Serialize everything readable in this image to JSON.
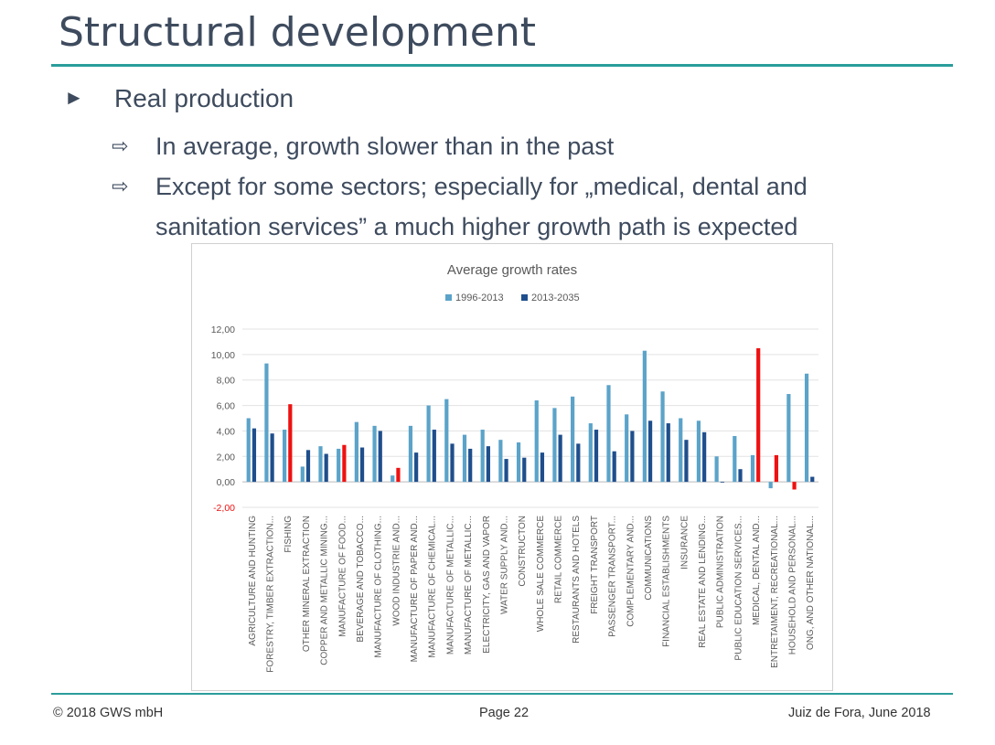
{
  "slide": {
    "title": "Structural development",
    "bullet1": "Real production",
    "sub1": "In average, growth slower than in the past",
    "sub2": "Except for some sectors; especially for „medical, dental and sanitation services” a much higher growth path is expected"
  },
  "footer": {
    "left": "© 2018 GWS mbH",
    "center": "Page 22",
    "right": "Juiz de Fora, June 2018"
  },
  "colors": {
    "series1": "#5ba3c9",
    "series2": "#1f4e8c",
    "highlight": "#ee1111",
    "negative_tick": "#ee1111"
  },
  "chart_data": {
    "type": "bar",
    "title": "Average growth rates",
    "legend_position": "top",
    "ylim": [
      -2,
      12
    ],
    "yticks": [
      "12,00",
      "10,00",
      "8,00",
      "6,00",
      "4,00",
      "2,00",
      "0,00",
      "-2,00"
    ],
    "ytick_values": [
      12,
      10,
      8,
      6,
      4,
      2,
      0,
      -2
    ],
    "grid": true,
    "categories": [
      "AGRICULTURE AND HUNTING",
      "FORESTRY, TIMBER EXTRACTION...",
      "FISHING",
      "OTHER MINERAL EXTRACTION",
      "COPPER AND METALLIC MINING...",
      "MANUFACTURE OF FOOD...",
      "BEVERAGE AND TOBACCO...",
      "MANUFACTURE OF CLOTHING...",
      "WOOD INDUSTRIE AND...",
      "MANUFACTURE OF PAPER AND...",
      "MANUFACTURE OF CHEMICAL...",
      "MANUFACTURE OF METALLIC...",
      "MANUFACTURE OF METALLIC...",
      "ELECTRICITY, GAS AND VAPOR",
      "WATER SUPPLY AND...",
      "CONSTRUCTON",
      "WHOLE SALE COMMERCE",
      "RETAIL COMMERCE",
      "RESTAURANTS AND HOTELS",
      "FREIGHT TRANSPORT",
      "PASSENGER TRANSPORT...",
      "COMPLEMENTARY AND...",
      "COMMUNICATIONS",
      "FINANCIAL ESTABLISHMENTS",
      "INSURANCE",
      "REAL ESTATE AND LENDING...",
      "PUBLIC ADMINISTRATION",
      "PUBLIC EDUCATION SERVICES...",
      "MEDICAL, DENTAL AND...",
      "ENTRETAIMENT, RECREATIONAL...",
      "HOUSEHOLD AND PERSONAL...",
      "ONG, AND OTHER NATIONAL..."
    ],
    "series": [
      {
        "name": "1996-2013",
        "values": [
          5.0,
          9.3,
          4.1,
          1.2,
          2.8,
          2.6,
          4.7,
          4.4,
          0.5,
          4.4,
          6.0,
          6.5,
          3.7,
          4.1,
          3.3,
          3.1,
          6.4,
          5.8,
          6.7,
          4.6,
          7.6,
          5.3,
          10.3,
          7.1,
          5.0,
          4.8,
          2.0,
          3.6,
          2.1,
          -0.5,
          6.9,
          8.5
        ]
      },
      {
        "name": "2013-2035",
        "values": [
          4.2,
          3.8,
          6.1,
          2.5,
          2.2,
          2.9,
          2.7,
          4.0,
          1.1,
          2.3,
          4.1,
          3.0,
          2.6,
          2.8,
          1.8,
          1.9,
          2.3,
          3.7,
          3.0,
          4.1,
          2.4,
          4.0,
          4.8,
          4.6,
          3.3,
          3.9,
          -0.05,
          1.0,
          10.5,
          2.1,
          -0.6,
          0.4
        ]
      }
    ],
    "highlighted_bars": [
      {
        "series": "2013-2035",
        "category_index": 2
      },
      {
        "series": "2013-2035",
        "category_index": 5
      },
      {
        "series": "2013-2035",
        "category_index": 8
      },
      {
        "series": "2013-2035",
        "category_index": 28
      },
      {
        "series": "2013-2035",
        "category_index": 29
      },
      {
        "series": "2013-2035",
        "category_index": 30
      }
    ]
  }
}
